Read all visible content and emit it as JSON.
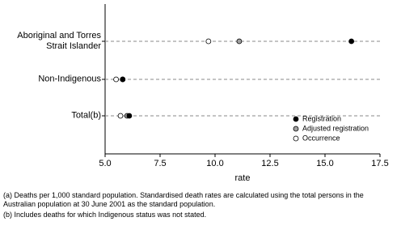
{
  "chart_data": {
    "type": "dot",
    "categories": [
      "Aboriginal and Torres Strait Islander",
      "Non-Indigenous",
      "Total(b)"
    ],
    "series": [
      {
        "name": "Registration",
        "color": "#000000",
        "values": [
          16.2,
          5.8,
          6.1
        ]
      },
      {
        "name": "Adjusted registration",
        "color": "#a0a0a0",
        "values": [
          11.1,
          5.8,
          6.0
        ]
      },
      {
        "name": "Occurrence",
        "color": "#ffffff",
        "values": [
          9.7,
          5.5,
          5.7
        ]
      }
    ],
    "xlabel": "rate",
    "xlim": [
      5,
      17.5
    ],
    "xticks": [
      {
        "value": 5,
        "label": "5.0"
      },
      7.5,
      {
        "value": 10,
        "label": "10.0"
      },
      12.5,
      {
        "value": 15,
        "label": "15.0"
      },
      17.5
    ],
    "grid": true,
    "legend": "lower right",
    "footnotes": [
      "(a) Deaths per 1,000 standard population. Standardised death rates are calculated using the total persons in the Australian population at 30 June 2001 as the standard population.",
      "(b) Includes deaths for which Indigenous status was not stated."
    ]
  }
}
